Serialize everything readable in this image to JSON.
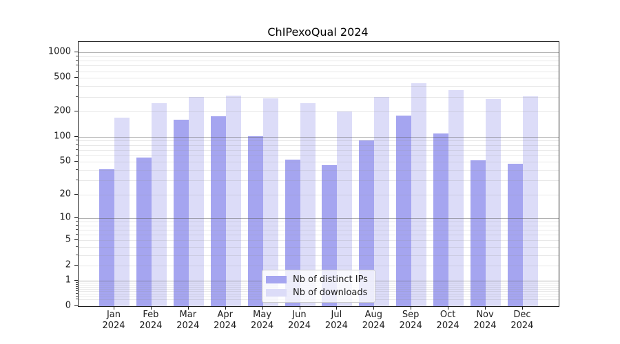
{
  "title": "ChIPexoQual 2024",
  "chart_data": {
    "type": "bar",
    "title": "ChIPexoQual 2024",
    "categories": [
      "Jan",
      "Feb",
      "Mar",
      "Apr",
      "May",
      "Jun",
      "Jul",
      "Aug",
      "Sep",
      "Oct",
      "Nov",
      "Dec"
    ],
    "x_tick_second_line": "2024",
    "series": [
      {
        "name": "Nb of distinct IPs",
        "color": "#a5a5f0",
        "values": [
          41,
          56,
          160,
          175,
          102,
          53,
          46,
          90,
          180,
          110,
          52,
          47
        ]
      },
      {
        "name": "Nb of downloads",
        "color": "#dcdcf8",
        "values": [
          170,
          250,
          300,
          310,
          285,
          252,
          200,
          295,
          430,
          360,
          280,
          305
        ]
      }
    ],
    "xlabel": "",
    "ylabel": "",
    "y_ticks": [
      0,
      1,
      2,
      5,
      10,
      20,
      50,
      100,
      200,
      500,
      1000
    ],
    "ylim": [
      0,
      1340
    ],
    "scale": "log10(value+1)",
    "grid": "horizontal, major on decades, faint minors",
    "legend_position": "bottom-center inside plot",
    "colors": {
      "axis": "#1c1c1c",
      "major_grid": "#b0b0b0",
      "minor_grid": "#e3e3e3",
      "plot_background": "#ffffff",
      "legend_border": "#cccccc"
    }
  }
}
